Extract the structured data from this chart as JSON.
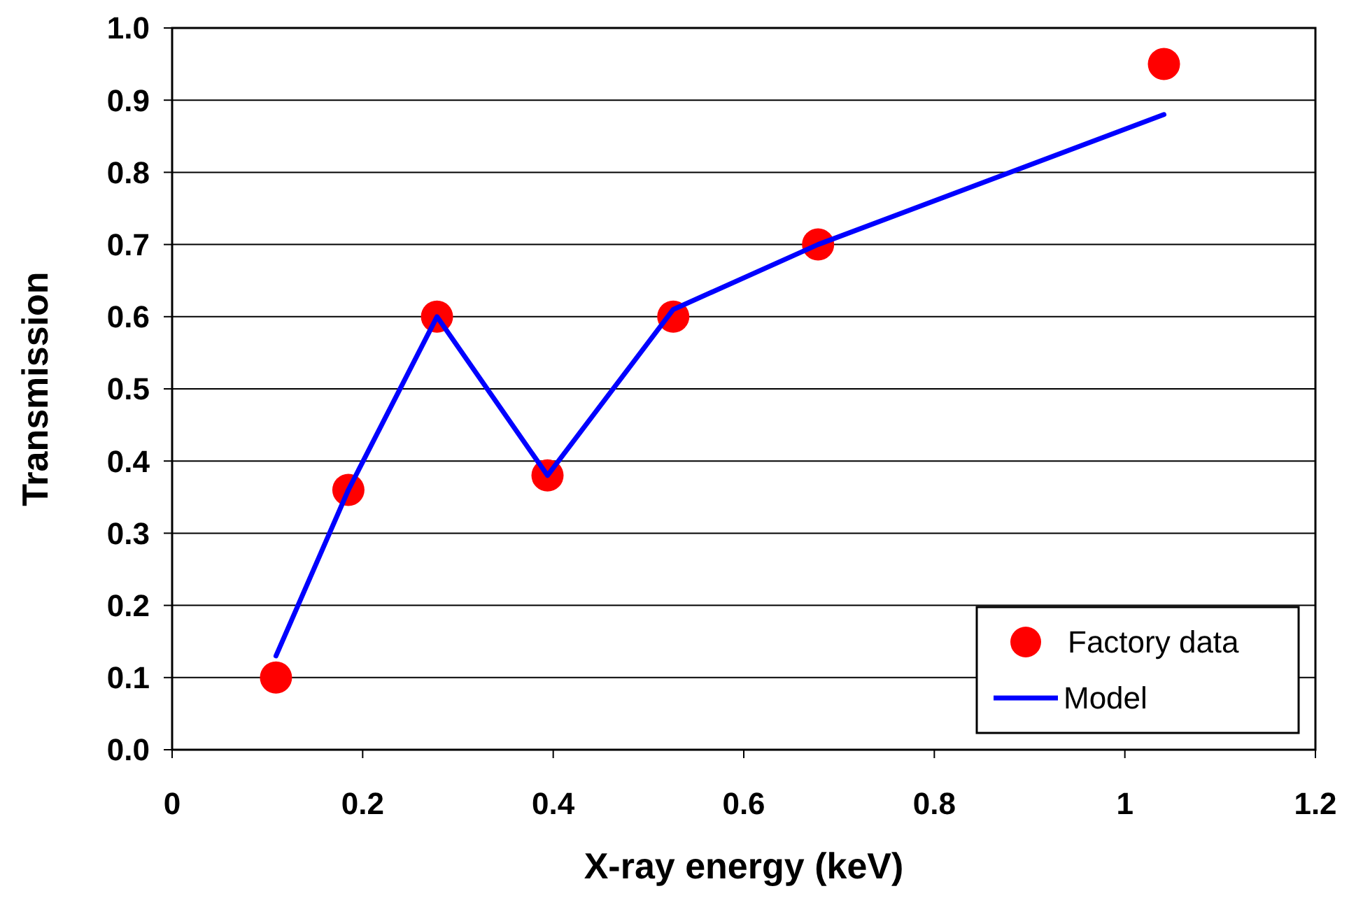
{
  "chart_data": {
    "type": "scatter",
    "xlabel": "X-ray energy (keV)",
    "ylabel": "Transmission",
    "xlim": [
      0,
      1.2
    ],
    "xticks": [
      0,
      0.2,
      0.4,
      0.6,
      0.8,
      1,
      1.2
    ],
    "ylim": [
      0,
      1
    ],
    "yticks": [
      {
        "value": 0,
        "label": "0.0"
      },
      {
        "value": 0.1,
        "label": "0.1"
      },
      {
        "value": 0.2,
        "label": "0.2"
      },
      {
        "value": 0.3,
        "label": "0.3"
      },
      {
        "value": 0.4,
        "label": "0.4"
      },
      {
        "value": 0.5,
        "label": "0.5"
      },
      {
        "value": 0.6,
        "label": "0.6"
      },
      {
        "value": 0.7,
        "label": "0.7"
      },
      {
        "value": 0.8,
        "label": "0.8"
      },
      {
        "value": 0.9,
        "label": "0.9"
      },
      {
        "value": 1,
        "label": "1.0"
      }
    ],
    "grid": "y",
    "legend": "bottom right",
    "series": [
      {
        "name": "Factory data",
        "color": "#ff0000",
        "marker": "circle",
        "x": [
          0.109,
          0.185,
          0.278,
          0.394,
          0.526,
          0.678,
          1.041
        ],
        "values": [
          0.1,
          0.36,
          0.6,
          0.38,
          0.6,
          0.7,
          0.95
        ]
      },
      {
        "name": "Model",
        "type": "line",
        "color": "#0000ff",
        "marker": "none",
        "line_style": "solid",
        "x": [
          0.109,
          0.185,
          0.278,
          0.394,
          0.526,
          0.678,
          1.041
        ],
        "values": [
          0.13,
          0.36,
          0.6,
          0.38,
          0.61,
          0.7,
          0.88
        ]
      }
    ]
  }
}
